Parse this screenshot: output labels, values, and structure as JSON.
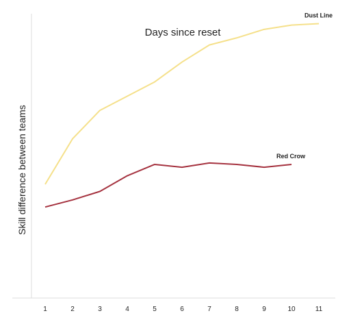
{
  "chart_data": {
    "type": "line",
    "title": "Days since reset",
    "xlabel": "",
    "ylabel": "Skill difference between teams",
    "x": [
      1,
      2,
      3,
      4,
      5,
      6,
      7,
      8,
      9,
      10,
      11
    ],
    "xlim": [
      0.5,
      11.5
    ],
    "ylim": [
      0,
      100
    ],
    "grid": false,
    "legend": "none",
    "series": [
      {
        "name": "Dust Line",
        "color": "#f5e08a",
        "x": [
          1,
          2,
          3,
          4,
          5,
          6,
          7,
          8,
          9,
          10,
          11
        ],
        "values": [
          40,
          56,
          66,
          71,
          76,
          83,
          89,
          91.5,
          94.5,
          96,
          96.5
        ]
      },
      {
        "name": "Red Crow",
        "color": "#a5323f",
        "x": [
          1,
          2,
          3,
          4,
          5,
          6,
          7,
          8,
          9,
          10
        ],
        "values": [
          32,
          34.5,
          37.5,
          43,
          47,
          46,
          47.5,
          47,
          46,
          47
        ]
      }
    ]
  }
}
